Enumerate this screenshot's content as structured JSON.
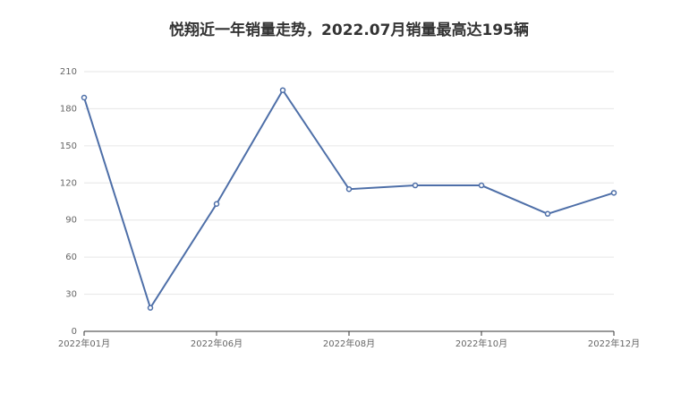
{
  "chart_data": {
    "type": "line",
    "title": "悦翔近一年销量走势，2022.07月销量最高达195辆",
    "categories": [
      "2022年01月",
      null,
      "2022年06月",
      null,
      "2022年08月",
      null,
      "2022年10月",
      null,
      "2022年12月"
    ],
    "series": [
      {
        "name": "销量",
        "color": "#4e6fa8",
        "values": [
          189,
          19,
          103,
          195,
          115,
          118,
          118,
          95,
          112
        ]
      }
    ],
    "ylim": [
      0,
      210
    ],
    "yticks": [
      0,
      30,
      60,
      90,
      120,
      150,
      180,
      210
    ],
    "grid": true
  }
}
